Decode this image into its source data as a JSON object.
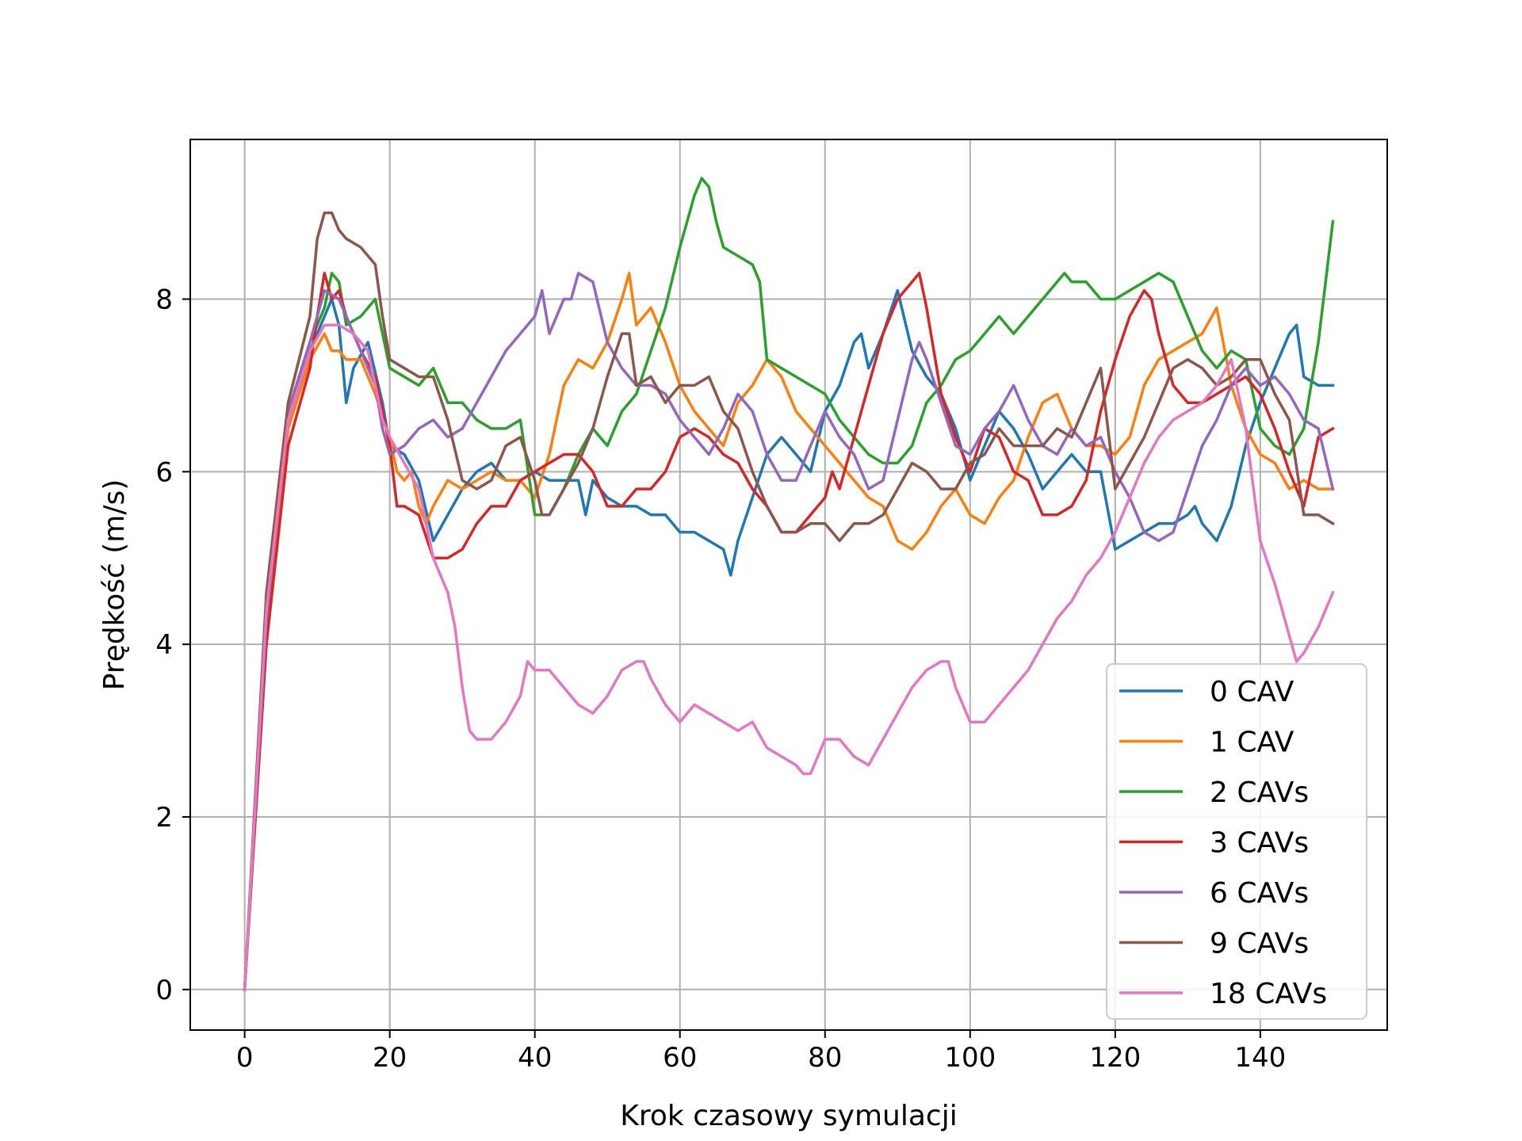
{
  "chart_data": {
    "type": "line",
    "title": "",
    "xlabel": "Krok czasowy symulacji",
    "ylabel": "Prędkość (m/s)",
    "xlim": [
      -7.5,
      157.5
    ],
    "ylim": [
      -0.47,
      9.85
    ],
    "xticks": [
      0,
      20,
      40,
      60,
      80,
      100,
      120,
      140
    ],
    "yticks": [
      0,
      2,
      4,
      6,
      8
    ],
    "grid": true,
    "legend_position": "lower-right",
    "series": [
      {
        "name": "0 CAV",
        "color": "#1f77b4",
        "x": [
          0,
          3,
          6,
          9,
          12,
          13,
          14,
          15,
          17,
          19,
          20,
          22,
          24,
          26,
          28,
          30,
          32,
          34,
          36,
          38,
          40,
          42,
          46,
          47,
          48,
          50,
          52,
          54,
          56,
          58,
          60,
          62,
          64,
          66,
          67,
          68,
          70,
          72,
          74,
          76,
          78,
          80,
          82,
          84,
          85,
          86,
          88,
          90,
          92,
          94,
          96,
          98,
          100,
          102,
          104,
          106,
          108,
          110,
          112,
          114,
          116,
          118,
          120,
          122,
          124,
          126,
          128,
          130,
          131,
          132,
          134,
          136,
          138,
          140,
          142,
          144,
          145,
          146,
          148,
          150
        ],
        "y": [
          0,
          4.2,
          6.6,
          7.4,
          8.0,
          7.7,
          6.8,
          7.2,
          7.5,
          6.8,
          6.3,
          6.2,
          5.9,
          5.2,
          5.5,
          5.8,
          6.0,
          6.1,
          5.9,
          5.9,
          6.0,
          5.9,
          5.9,
          5.5,
          5.9,
          5.7,
          5.6,
          5.6,
          5.5,
          5.5,
          5.3,
          5.3,
          5.2,
          5.1,
          4.8,
          5.2,
          5.7,
          6.2,
          6.4,
          6.2,
          6.0,
          6.7,
          7.0,
          7.5,
          7.6,
          7.2,
          7.6,
          8.1,
          7.4,
          7.1,
          6.9,
          6.5,
          5.9,
          6.3,
          6.7,
          6.5,
          6.2,
          5.8,
          6.0,
          6.2,
          6.0,
          6.0,
          5.1,
          5.2,
          5.3,
          5.4,
          5.4,
          5.5,
          5.6,
          5.4,
          5.2,
          5.6,
          6.3,
          6.8,
          7.2,
          7.6,
          7.7,
          7.1,
          7.0,
          7.0
        ]
      },
      {
        "name": "1 CAV",
        "color": "#ff7f0e",
        "x": [
          0,
          3,
          6,
          9,
          11,
          12,
          13,
          14,
          16,
          18,
          20,
          21,
          22,
          23,
          24,
          25,
          26,
          28,
          30,
          32,
          34,
          36,
          38,
          40,
          42,
          44,
          46,
          48,
          50,
          52,
          53,
          54,
          56,
          58,
          60,
          62,
          64,
          66,
          68,
          70,
          72,
          74,
          76,
          78,
          80,
          82,
          84,
          86,
          88,
          90,
          92,
          94,
          96,
          98,
          100,
          102,
          104,
          106,
          108,
          110,
          112,
          114,
          116,
          118,
          120,
          122,
          124,
          126,
          128,
          130,
          132,
          134,
          136,
          138,
          140,
          142,
          144,
          146,
          148,
          150
        ],
        "y": [
          0,
          4.2,
          6.5,
          7.3,
          7.6,
          7.4,
          7.4,
          7.3,
          7.3,
          6.9,
          6.4,
          6.0,
          5.9,
          6.0,
          5.6,
          5.4,
          5.6,
          5.9,
          5.8,
          5.9,
          6.0,
          5.9,
          5.9,
          5.7,
          6.2,
          7.0,
          7.3,
          7.2,
          7.5,
          8.0,
          8.3,
          7.7,
          7.9,
          7.5,
          7.0,
          6.7,
          6.5,
          6.3,
          6.8,
          7.0,
          7.3,
          7.1,
          6.7,
          6.5,
          6.3,
          6.1,
          5.9,
          5.7,
          5.6,
          5.2,
          5.1,
          5.3,
          5.6,
          5.8,
          5.5,
          5.4,
          5.7,
          5.9,
          6.4,
          6.8,
          6.9,
          6.5,
          6.3,
          6.3,
          6.2,
          6.4,
          7.0,
          7.3,
          7.4,
          7.5,
          7.6,
          7.9,
          7.0,
          6.5,
          6.2,
          6.1,
          5.8,
          5.9,
          5.8,
          5.8
        ]
      },
      {
        "name": "2 CAVs",
        "color": "#2ca02c",
        "x": [
          0,
          3,
          6,
          9,
          11,
          12,
          13,
          14,
          16,
          18,
          20,
          22,
          24,
          26,
          28,
          30,
          32,
          34,
          36,
          38,
          40,
          42,
          44,
          46,
          48,
          50,
          52,
          54,
          56,
          58,
          60,
          62,
          63,
          64,
          65,
          66,
          68,
          70,
          71,
          72,
          74,
          76,
          78,
          80,
          82,
          84,
          86,
          88,
          90,
          92,
          94,
          96,
          98,
          100,
          102,
          104,
          106,
          108,
          110,
          112,
          113,
          114,
          116,
          118,
          120,
          122,
          124,
          126,
          128,
          130,
          132,
          134,
          136,
          138,
          140,
          142,
          144,
          146,
          148,
          150
        ],
        "y": [
          0,
          4.3,
          6.7,
          7.5,
          7.9,
          8.3,
          8.2,
          7.7,
          7.8,
          8.0,
          7.2,
          7.1,
          7.0,
          7.2,
          6.8,
          6.8,
          6.6,
          6.5,
          6.5,
          6.6,
          5.5,
          5.5,
          5.8,
          6.2,
          6.5,
          6.3,
          6.7,
          6.9,
          7.4,
          7.9,
          8.6,
          9.2,
          9.4,
          9.3,
          8.9,
          8.6,
          8.5,
          8.4,
          8.2,
          7.3,
          7.2,
          7.1,
          7.0,
          6.9,
          6.6,
          6.4,
          6.2,
          6.1,
          6.1,
          6.3,
          6.8,
          7.0,
          7.3,
          7.4,
          7.6,
          7.8,
          7.6,
          7.8,
          8.0,
          8.2,
          8.3,
          8.2,
          8.2,
          8.0,
          8.0,
          8.1,
          8.2,
          8.3,
          8.2,
          7.8,
          7.4,
          7.2,
          7.4,
          7.3,
          6.5,
          6.3,
          6.2,
          6.5,
          7.5,
          8.9
        ]
      },
      {
        "name": "3 CAVs",
        "color": "#d62728",
        "x": [
          0,
          3,
          6,
          9,
          10,
          11,
          12,
          13,
          14,
          16,
          18,
          20,
          21,
          22,
          24,
          26,
          28,
          30,
          32,
          34,
          36,
          38,
          40,
          42,
          44,
          46,
          48,
          50,
          52,
          54,
          56,
          58,
          60,
          62,
          64,
          66,
          68,
          70,
          72,
          74,
          76,
          78,
          80,
          81,
          82,
          84,
          86,
          88,
          90,
          92,
          93,
          94,
          96,
          98,
          100,
          102,
          104,
          106,
          108,
          110,
          112,
          114,
          116,
          118,
          120,
          122,
          124,
          125,
          126,
          128,
          130,
          132,
          134,
          136,
          138,
          140,
          142,
          144,
          146,
          148,
          150
        ],
        "y": [
          0,
          4.0,
          6.3,
          7.2,
          7.8,
          8.3,
          8.0,
          8.1,
          7.8,
          7.4,
          7.1,
          6.3,
          5.6,
          5.6,
          5.5,
          5.0,
          5.0,
          5.1,
          5.4,
          5.6,
          5.6,
          5.9,
          6.0,
          6.1,
          6.2,
          6.2,
          6.0,
          5.6,
          5.6,
          5.8,
          5.8,
          6.0,
          6.4,
          6.5,
          6.4,
          6.2,
          6.1,
          5.8,
          5.6,
          5.3,
          5.3,
          5.5,
          5.7,
          6.0,
          5.8,
          6.4,
          7.0,
          7.6,
          8.0,
          8.2,
          8.3,
          7.9,
          6.9,
          6.4,
          6.0,
          6.5,
          6.4,
          6.0,
          5.9,
          5.5,
          5.5,
          5.6,
          5.9,
          6.7,
          7.3,
          7.8,
          8.1,
          8.0,
          7.6,
          7.0,
          6.8,
          6.8,
          6.9,
          7.0,
          7.1,
          6.9,
          6.5,
          6.0,
          5.6,
          6.4,
          6.5
        ]
      },
      {
        "name": "6 CAVs",
        "color": "#9467bd",
        "x": [
          0,
          3,
          6,
          9,
          11,
          13,
          14,
          16,
          18,
          19,
          20,
          22,
          24,
          26,
          28,
          30,
          32,
          34,
          36,
          38,
          40,
          41,
          42,
          44,
          45,
          46,
          48,
          50,
          52,
          54,
          56,
          58,
          60,
          62,
          64,
          66,
          68,
          70,
          72,
          74,
          76,
          78,
          80,
          82,
          84,
          86,
          88,
          90,
          92,
          93,
          94,
          96,
          98,
          100,
          102,
          104,
          106,
          108,
          110,
          112,
          114,
          116,
          118,
          120,
          122,
          124,
          126,
          128,
          130,
          132,
          134,
          136,
          138,
          140,
          142,
          144,
          146,
          148,
          150
        ],
        "y": [
          0,
          4.3,
          6.7,
          7.5,
          8.1,
          8.0,
          7.8,
          7.4,
          7.0,
          6.5,
          6.2,
          6.3,
          6.5,
          6.6,
          6.4,
          6.5,
          6.8,
          7.1,
          7.4,
          7.6,
          7.8,
          8.1,
          7.6,
          8.0,
          8.0,
          8.3,
          8.2,
          7.5,
          7.2,
          7.0,
          7.0,
          6.9,
          6.6,
          6.4,
          6.2,
          6.5,
          6.9,
          6.7,
          6.2,
          5.9,
          5.9,
          6.3,
          6.7,
          6.4,
          6.2,
          5.8,
          5.9,
          6.6,
          7.3,
          7.5,
          7.3,
          6.8,
          6.3,
          6.2,
          6.5,
          6.7,
          7.0,
          6.6,
          6.3,
          6.2,
          6.5,
          6.3,
          6.4,
          6.0,
          5.7,
          5.3,
          5.2,
          5.3,
          5.8,
          6.3,
          6.6,
          7.0,
          7.2,
          7.0,
          7.1,
          6.9,
          6.6,
          6.5,
          5.8
        ]
      },
      {
        "name": "9 CAVs",
        "color": "#8c564b",
        "x": [
          0,
          3,
          6,
          9,
          10,
          11,
          12,
          13,
          14,
          16,
          18,
          19,
          20,
          22,
          24,
          26,
          28,
          30,
          32,
          34,
          36,
          38,
          40,
          41,
          42,
          44,
          46,
          48,
          50,
          52,
          53,
          54,
          56,
          58,
          60,
          62,
          64,
          66,
          68,
          70,
          72,
          74,
          76,
          78,
          80,
          82,
          84,
          86,
          88,
          90,
          92,
          94,
          96,
          98,
          100,
          102,
          104,
          106,
          108,
          110,
          112,
          114,
          116,
          118,
          120,
          122,
          124,
          126,
          128,
          130,
          132,
          134,
          136,
          138,
          140,
          142,
          144,
          146,
          148,
          150
        ],
        "y": [
          0,
          4.6,
          6.8,
          7.8,
          8.7,
          9.0,
          9.0,
          8.8,
          8.7,
          8.6,
          8.4,
          7.8,
          7.3,
          7.2,
          7.1,
          7.1,
          6.6,
          5.9,
          5.8,
          5.9,
          6.3,
          6.4,
          5.9,
          5.5,
          5.5,
          5.8,
          6.1,
          6.5,
          7.1,
          7.6,
          7.6,
          7.0,
          7.1,
          6.8,
          7.0,
          7.0,
          7.1,
          6.7,
          6.5,
          6.0,
          5.6,
          5.3,
          5.3,
          5.4,
          5.4,
          5.2,
          5.4,
          5.4,
          5.5,
          5.8,
          6.1,
          6.0,
          5.8,
          5.8,
          6.1,
          6.2,
          6.5,
          6.3,
          6.3,
          6.3,
          6.5,
          6.4,
          6.8,
          7.2,
          5.8,
          6.1,
          6.4,
          6.8,
          7.2,
          7.3,
          7.2,
          7.0,
          7.1,
          7.3,
          7.3,
          6.9,
          6.6,
          5.5,
          5.5,
          5.4
        ]
      },
      {
        "name": "18 CAVs",
        "color": "#e377c2",
        "x": [
          0,
          3,
          6,
          9,
          11,
          13,
          15,
          17,
          18,
          19,
          20,
          22,
          24,
          26,
          27,
          28,
          29,
          30,
          31,
          32,
          34,
          36,
          38,
          39,
          40,
          42,
          44,
          46,
          48,
          50,
          52,
          54,
          55,
          56,
          58,
          60,
          62,
          64,
          66,
          68,
          70,
          72,
          74,
          76,
          77,
          78,
          80,
          82,
          84,
          86,
          88,
          90,
          92,
          94,
          96,
          97,
          98,
          100,
          102,
          104,
          106,
          108,
          110,
          112,
          114,
          116,
          118,
          120,
          122,
          124,
          126,
          128,
          130,
          132,
          134,
          136,
          138,
          140,
          142,
          144,
          145,
          146,
          148,
          150
        ],
        "y": [
          0,
          4.4,
          6.6,
          7.4,
          7.7,
          7.7,
          7.6,
          7.4,
          7.0,
          6.6,
          6.4,
          6.1,
          5.8,
          5.0,
          4.8,
          4.6,
          4.2,
          3.5,
          3.0,
          2.9,
          2.9,
          3.1,
          3.4,
          3.8,
          3.7,
          3.7,
          3.5,
          3.3,
          3.2,
          3.4,
          3.7,
          3.8,
          3.8,
          3.6,
          3.3,
          3.1,
          3.3,
          3.2,
          3.1,
          3.0,
          3.1,
          2.8,
          2.7,
          2.6,
          2.5,
          2.5,
          2.9,
          2.9,
          2.7,
          2.6,
          2.9,
          3.2,
          3.5,
          3.7,
          3.8,
          3.8,
          3.5,
          3.1,
          3.1,
          3.3,
          3.5,
          3.7,
          4.0,
          4.3,
          4.5,
          4.8,
          5.0,
          5.3,
          5.7,
          6.1,
          6.4,
          6.6,
          6.7,
          6.8,
          7.0,
          7.3,
          6.5,
          5.2,
          4.7,
          4.1,
          3.8,
          3.9,
          4.2,
          4.6
        ]
      }
    ]
  }
}
